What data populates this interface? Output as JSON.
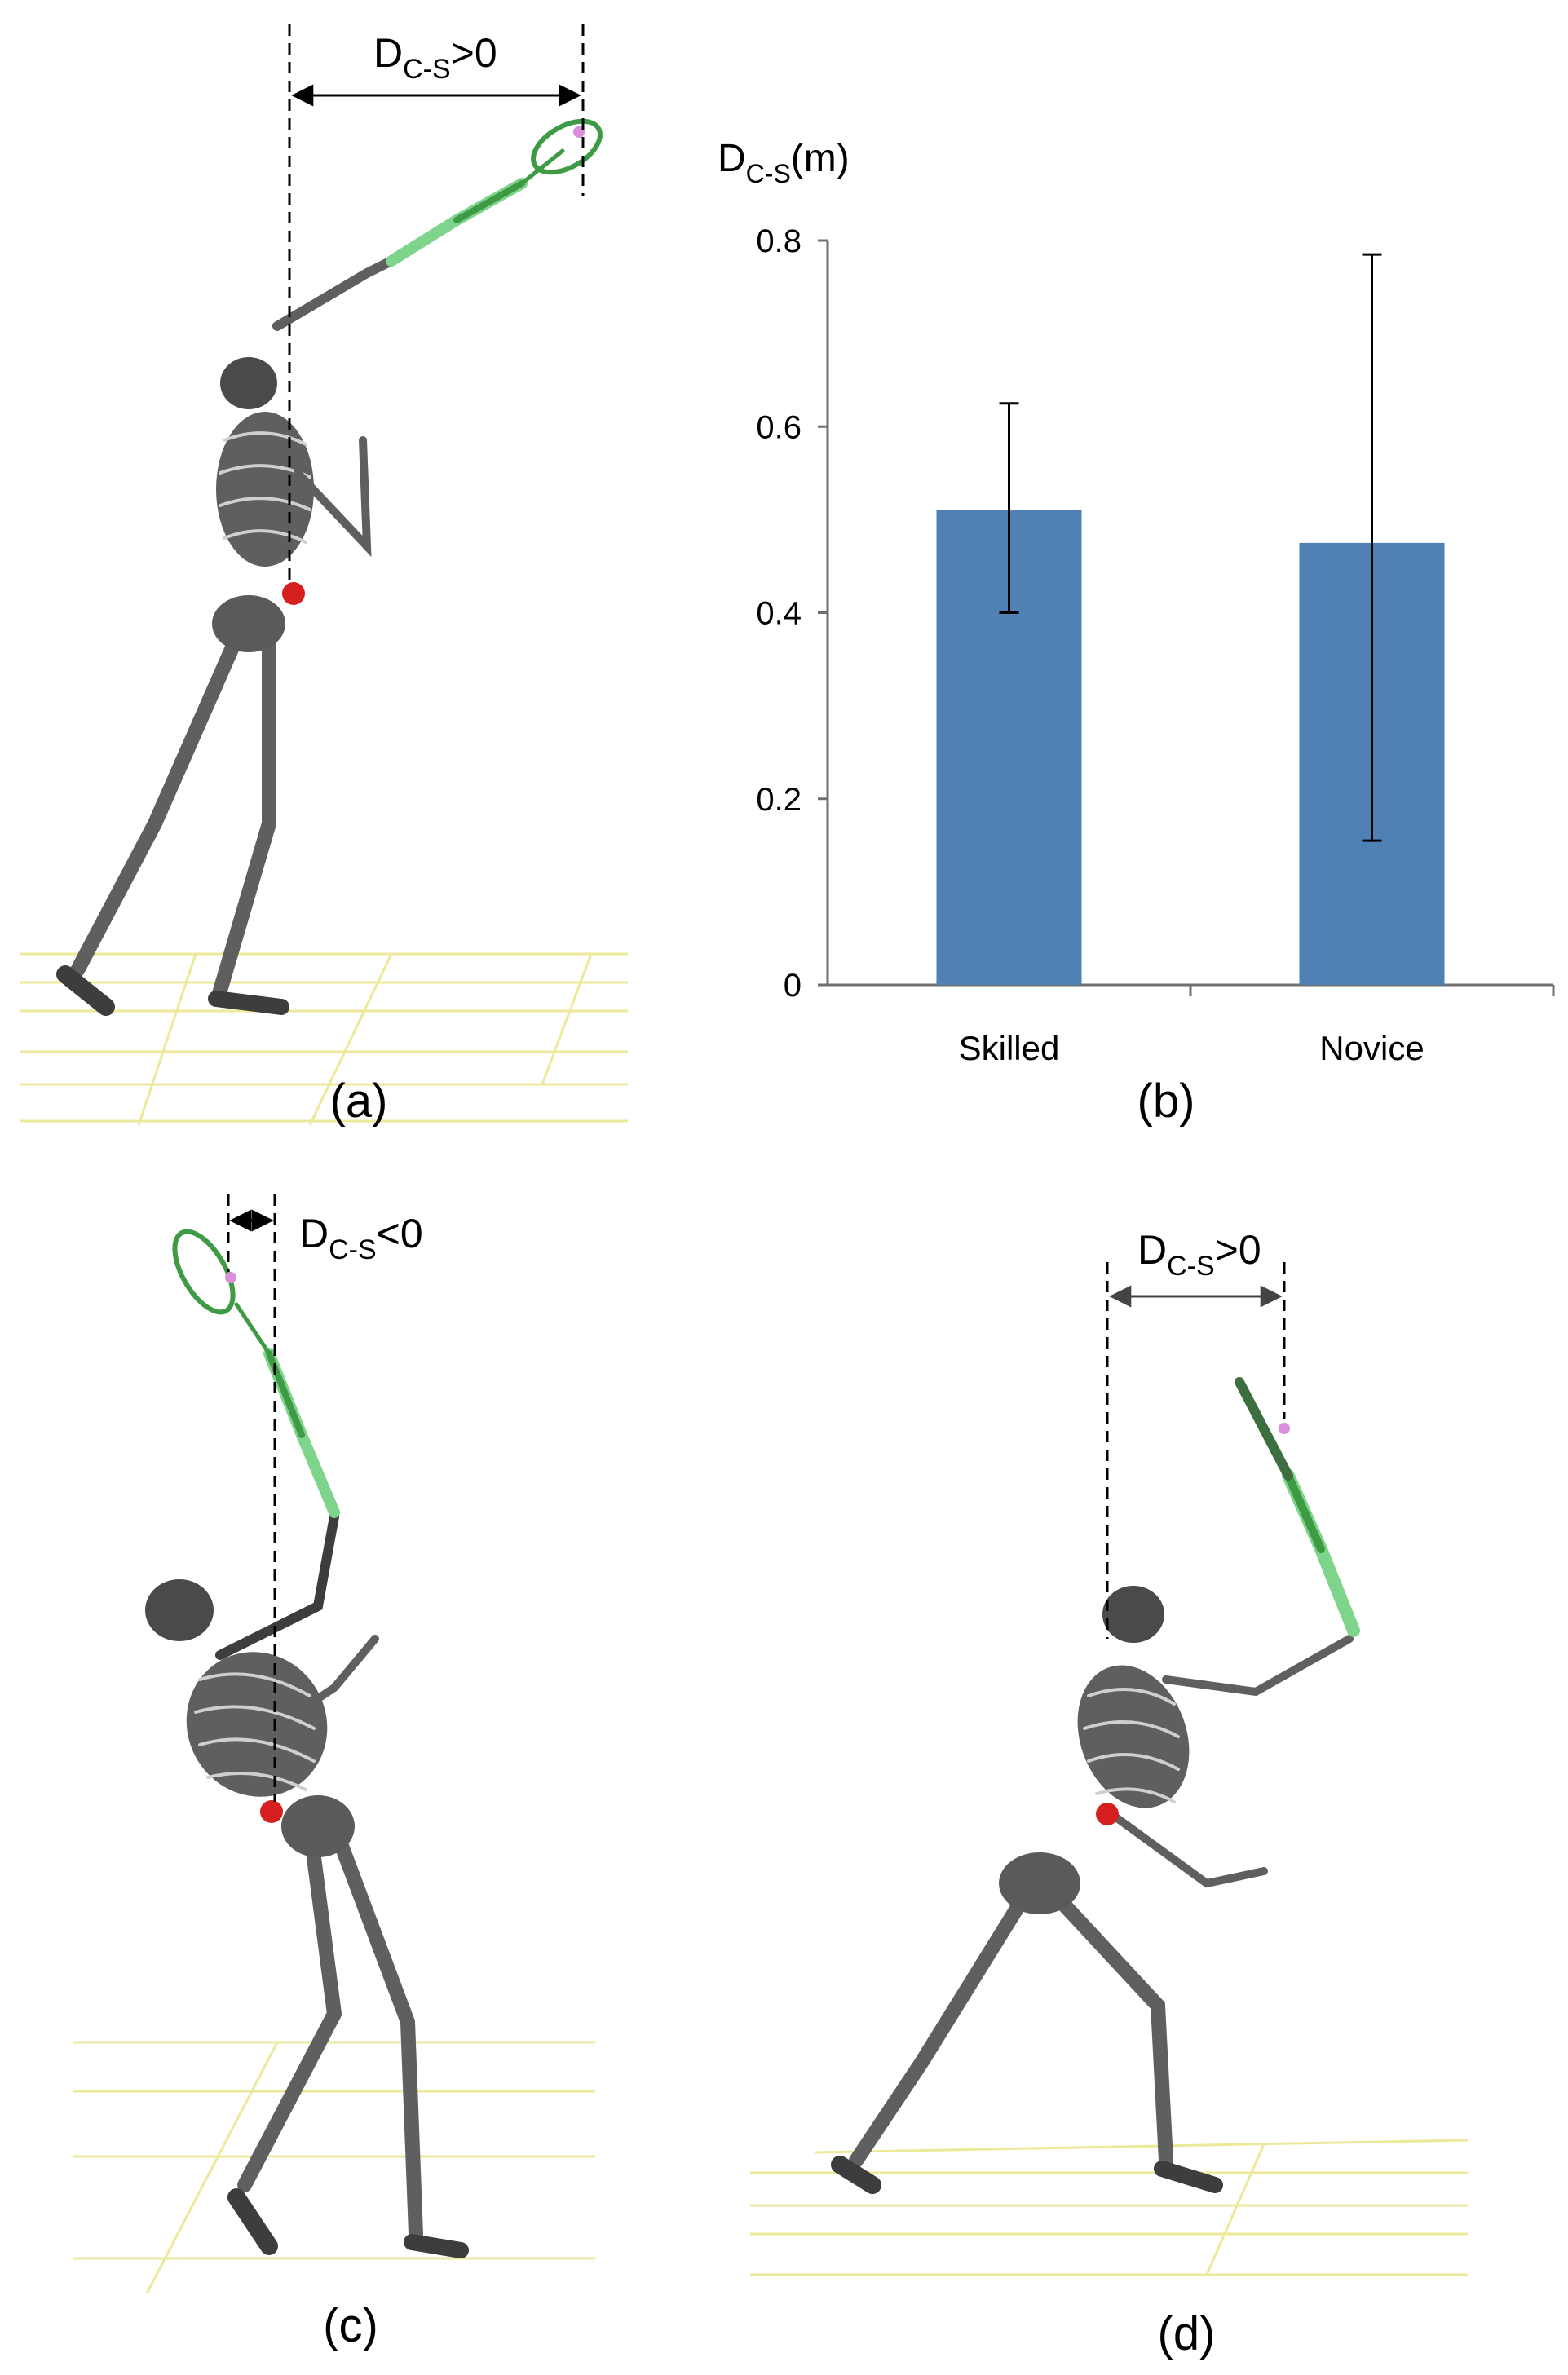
{
  "panels": {
    "a": {
      "label": "(a)",
      "measure": {
        "symbol": "D",
        "subscript": "C-S",
        "relation": ">0"
      }
    },
    "b": {
      "label": "(b)"
    },
    "c": {
      "label": "(c)",
      "measure": {
        "symbol": "D",
        "subscript": "C-S",
        "relation": "<0"
      }
    },
    "d": {
      "label": "(d)",
      "measure": {
        "symbol": "D",
        "subscript": "C-S",
        "relation": ">0"
      }
    }
  },
  "chart_data": {
    "type": "bar",
    "ylabel": {
      "symbol": "D",
      "subscript": "C-S",
      "unit": "(m)"
    },
    "categories": [
      "Skilled",
      "Novice"
    ],
    "values": [
      0.51,
      0.475
    ],
    "error_low": [
      0.4,
      0.155
    ],
    "error_high": [
      0.625,
      0.785
    ],
    "ylim": [
      0,
      0.8
    ],
    "yticks": [
      "0",
      "0.2",
      "0.4",
      "0.6",
      "0.8"
    ],
    "grid": false,
    "bar_color": "#4f81b4"
  },
  "colors": {
    "bone": "#5f5f5f",
    "bone_dark": "#3d3d3d",
    "racket": "#3f9a45",
    "racket_light": "#7fd48c",
    "com_marker": "#d62020",
    "shuttle_marker": "#d98fd9",
    "floor_grid": "#ece99a"
  }
}
